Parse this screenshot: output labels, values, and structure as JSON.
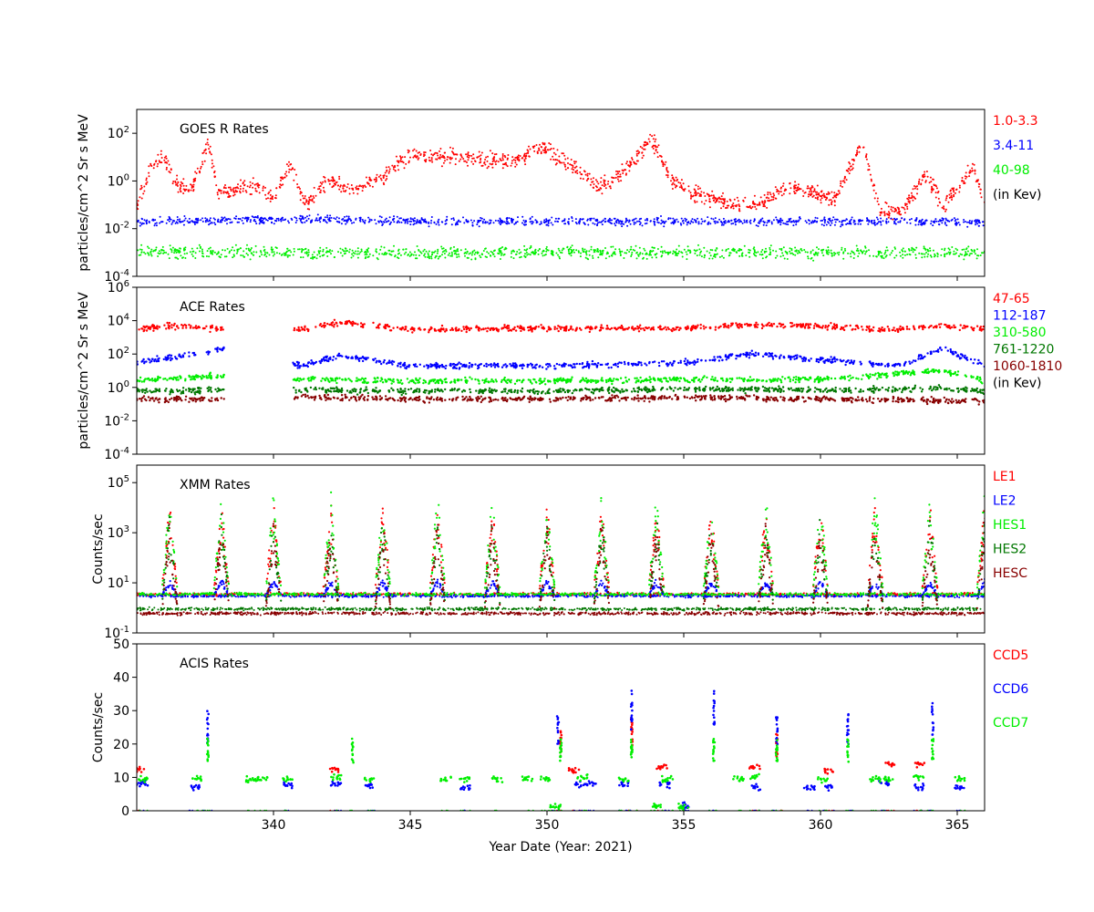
{
  "xlabel": "Year Date (Year: 2021)",
  "xlim": [
    335,
    366
  ],
  "xticks": [
    340,
    345,
    350,
    355,
    360,
    365
  ],
  "chart_data": [
    {
      "type": "scatter",
      "title": "GOES R Rates",
      "ylabel": "particles/cm^2 Sr s MeV",
      "yscale": "log",
      "ylim": [
        0.0001,
        1000
      ],
      "yticks": [
        {
          "exp": "-4",
          "value": 0.0001
        },
        {
          "exp": "-2",
          "value": 0.01
        },
        {
          "exp": "0",
          "value": 1
        },
        {
          "exp": "2",
          "value": 100
        }
      ],
      "legend": [
        {
          "label": "1.0-3.3",
          "color": "#ff0000"
        },
        {
          "label": "3.4-11",
          "color": "#0000ff"
        },
        {
          "label": "40-98",
          "color": "#00ee00"
        },
        {
          "label": "(in Kev)",
          "color": "#000000"
        }
      ],
      "series": [
        {
          "name": "1.0-3.3",
          "color": "#ff0000",
          "values": [
            [
              335.0,
              0.1
            ],
            [
              335.5,
              3
            ],
            [
              336.0,
              10
            ],
            [
              336.5,
              0.6
            ],
            [
              337.0,
              0.4
            ],
            [
              337.6,
              40
            ],
            [
              338.0,
              0.3
            ],
            [
              338.7,
              0.6
            ],
            [
              339.5,
              0.5
            ],
            [
              340.0,
              0.2
            ],
            [
              340.6,
              5
            ],
            [
              341.2,
              0.1
            ],
            [
              342.0,
              1
            ],
            [
              343.0,
              0.4
            ],
            [
              344.0,
              1.5
            ],
            [
              344.9,
              10
            ],
            [
              345.8,
              10
            ],
            [
              346.8,
              10
            ],
            [
              347.8,
              8
            ],
            [
              348.8,
              6
            ],
            [
              349.8,
              30
            ],
            [
              350.8,
              5
            ],
            [
              351.9,
              0.5
            ],
            [
              352.9,
              3
            ],
            [
              353.8,
              60
            ],
            [
              354.6,
              1
            ],
            [
              355.4,
              0.3
            ],
            [
              356.8,
              0.1
            ],
            [
              357.8,
              0.1
            ],
            [
              358.6,
              0.5
            ],
            [
              359.5,
              0.4
            ],
            [
              360.5,
              0.15
            ],
            [
              361.5,
              40
            ],
            [
              362.2,
              0.05
            ],
            [
              363.0,
              0.05
            ],
            [
              363.8,
              2
            ],
            [
              364.5,
              0.1
            ],
            [
              365.6,
              4
            ],
            [
              366.0,
              0.1
            ]
          ]
        },
        {
          "name": "3.4-11",
          "color": "#0000ff",
          "values": [
            [
              335.0,
              0.02
            ],
            [
              338.0,
              0.022
            ],
            [
              341.0,
              0.025
            ],
            [
              345.0,
              0.02
            ],
            [
              350.0,
              0.02
            ],
            [
              355.0,
              0.02
            ],
            [
              360.0,
              0.02
            ],
            [
              366.0,
              0.02
            ]
          ]
        },
        {
          "name": "40-98",
          "color": "#00ee00",
          "values": [
            [
              335.0,
              0.001
            ],
            [
              340.0,
              0.001
            ],
            [
              345.0,
              0.001
            ],
            [
              350.0,
              0.001
            ],
            [
              355.0,
              0.001
            ],
            [
              360.0,
              0.001
            ],
            [
              366.0,
              0.001
            ]
          ]
        }
      ]
    },
    {
      "type": "scatter",
      "title": "ACE Rates",
      "ylabel": "particles/cm^2 Sr s MeV",
      "yscale": "log",
      "ylim": [
        0.0001,
        1000000
      ],
      "yticks": [
        {
          "exp": "-4",
          "value": 0.0001
        },
        {
          "exp": "-2",
          "value": 0.01
        },
        {
          "exp": "0",
          "value": 1
        },
        {
          "exp": "2",
          "value": 100
        },
        {
          "exp": "4",
          "value": 10000
        },
        {
          "exp": "6",
          "value": 1000000
        }
      ],
      "legend": [
        {
          "label": "47-65",
          "color": "#ff0000"
        },
        {
          "label": "112-187",
          "color": "#0000ff"
        },
        {
          "label": "310-580",
          "color": "#00ee00"
        },
        {
          "label": "761-1220",
          "color": "#007700"
        },
        {
          "label": "1060-1810",
          "color": "#880000"
        },
        {
          "label": "(in Kev)",
          "color": "#000000"
        }
      ],
      "gaps": [
        [
          338.2,
          340.7
        ]
      ],
      "series": [
        {
          "name": "47-65",
          "color": "#ff0000",
          "values": [
            [
              335.0,
              3000
            ],
            [
              336.2,
              5000
            ],
            [
              338.1,
              3000
            ],
            [
              341.0,
              3000
            ],
            [
              342.4,
              8000
            ],
            [
              345.0,
              3000
            ],
            [
              350.0,
              3500
            ],
            [
              355.0,
              3500
            ],
            [
              358.3,
              6000
            ],
            [
              362.8,
              3000
            ],
            [
              364.5,
              5000
            ],
            [
              366.0,
              3000
            ]
          ]
        },
        {
          "name": "112-187",
          "color": "#0000ff",
          "values": [
            [
              335.0,
              30
            ],
            [
              336.2,
              60
            ],
            [
              338.1,
              200
            ],
            [
              341.0,
              20
            ],
            [
              342.4,
              80
            ],
            [
              345.0,
              20
            ],
            [
              350.0,
              20
            ],
            [
              355.0,
              30
            ],
            [
              357.5,
              100
            ],
            [
              362.8,
              20
            ],
            [
              364.5,
              200
            ],
            [
              366.0,
              20
            ]
          ]
        },
        {
          "name": "310-580",
          "color": "#00ee00",
          "values": [
            [
              335.0,
              2.5
            ],
            [
              338.1,
              5
            ],
            [
              341.0,
              3
            ],
            [
              345.0,
              2.5
            ],
            [
              350.0,
              2.5
            ],
            [
              355.0,
              3
            ],
            [
              360.0,
              3
            ],
            [
              364.5,
              10
            ],
            [
              366.0,
              2.5
            ]
          ]
        },
        {
          "name": "761-1220",
          "color": "#007700",
          "values": [
            [
              335.0,
              0.6
            ],
            [
              338.1,
              0.7
            ],
            [
              341.0,
              0.7
            ],
            [
              345.0,
              0.6
            ],
            [
              350.0,
              0.6
            ],
            [
              355.0,
              0.8
            ],
            [
              360.0,
              0.7
            ],
            [
              364.5,
              0.9
            ],
            [
              366.0,
              0.6
            ]
          ]
        },
        {
          "name": "1060-1810",
          "color": "#880000",
          "values": [
            [
              335.0,
              0.2
            ],
            [
              338.1,
              0.2
            ],
            [
              341.0,
              0.25
            ],
            [
              345.0,
              0.2
            ],
            [
              350.0,
              0.2
            ],
            [
              355.0,
              0.25
            ],
            [
              360.0,
              0.2
            ],
            [
              366.0,
              0.15
            ]
          ]
        }
      ]
    },
    {
      "type": "scatter",
      "title": "XMM Rates",
      "ylabel": "Counts/sec",
      "yscale": "log",
      "ylim": [
        0.1,
        500000
      ],
      "yticks": [
        {
          "base": "10",
          "exp": "-1",
          "value": 0.1
        },
        {
          "base": "10",
          "exp": "1",
          "value": 10
        },
        {
          "base": "10",
          "exp": "3",
          "value": 1000
        },
        {
          "base": "10",
          "exp": "5",
          "value": 100000
        }
      ],
      "legend": [
        {
          "label": "LE1",
          "color": "#ff0000"
        },
        {
          "label": "LE2",
          "color": "#0000ff"
        },
        {
          "label": "HES1",
          "color": "#00ee00"
        },
        {
          "label": "HES2",
          "color": "#007700"
        },
        {
          "label": "HESC",
          "color": "#880000"
        }
      ],
      "orbits": [
        336.2,
        338.1,
        340.0,
        342.1,
        344.0,
        346.0,
        348.0,
        350.0,
        352.0,
        354.0,
        356.0,
        358.0,
        360.0,
        362.0,
        364.0,
        366.0
      ],
      "series": [
        {
          "name": "LE1",
          "color": "#ff0000",
          "baseline": 3.5,
          "peak": 20000
        },
        {
          "name": "LE2",
          "color": "#0000ff",
          "baseline": 3.0,
          "peak": 15
        },
        {
          "name": "HES1",
          "color": "#00ee00",
          "baseline": 3.5,
          "peak": 50000
        },
        {
          "name": "HES2",
          "color": "#007700",
          "baseline": 0.9,
          "peak": 8000
        },
        {
          "name": "HESC",
          "color": "#880000",
          "baseline": 0.6,
          "peak": 5000
        }
      ]
    },
    {
      "type": "scatter",
      "title": "ACIS Rates",
      "ylabel": "Counts/sec",
      "yscale": "linear",
      "ylim": [
        0,
        50
      ],
      "yticks": [
        0,
        10,
        20,
        30,
        40,
        50
      ],
      "legend": [
        {
          "label": "CCD5",
          "color": "#ff0000"
        },
        {
          "label": "CCD6",
          "color": "#0000ff"
        },
        {
          "label": "CCD7",
          "color": "#00ee00"
        }
      ],
      "series": [
        {
          "name": "CCD5",
          "color": "#ff0000",
          "values": [
            [
              335.1,
              12.5
            ],
            [
              342.2,
              12.5
            ],
            [
              350.5,
              20
            ],
            [
              351.0,
              12
            ],
            [
              353.1,
              23
            ],
            [
              354.2,
              13
            ],
            [
              357.6,
              13
            ],
            [
              358.4,
              20
            ],
            [
              360.3,
              12
            ],
            [
              362.5,
              14
            ],
            [
              363.6,
              14
            ]
          ]
        },
        {
          "name": "CCD6",
          "color": "#0000ff",
          "values": [
            [
              335.2,
              8
            ],
            [
              337.1,
              7
            ],
            [
              337.6,
              25
            ],
            [
              340.5,
              7.5
            ],
            [
              342.3,
              8
            ],
            [
              343.5,
              7.5
            ],
            [
              347.0,
              7
            ],
            [
              350.4,
              25
            ],
            [
              351.2,
              8
            ],
            [
              351.6,
              8
            ],
            [
              352.8,
              8
            ],
            [
              353.1,
              30
            ],
            [
              354.3,
              8
            ],
            [
              355.0,
              1.5
            ],
            [
              356.1,
              30
            ],
            [
              357.6,
              7
            ],
            [
              358.4,
              25
            ],
            [
              359.6,
              7
            ],
            [
              360.3,
              7
            ],
            [
              361.0,
              25
            ],
            [
              362.3,
              8
            ],
            [
              363.6,
              7
            ],
            [
              364.1,
              28
            ],
            [
              365.1,
              7
            ]
          ]
        },
        {
          "name": "CCD7",
          "color": "#00ee00",
          "values": [
            [
              335.2,
              9.5
            ],
            [
              337.2,
              9.5
            ],
            [
              337.6,
              18
            ],
            [
              339.2,
              9.5
            ],
            [
              339.6,
              9.5
            ],
            [
              340.5,
              9.5
            ],
            [
              342.3,
              10
            ],
            [
              342.9,
              18
            ],
            [
              343.5,
              9.5
            ],
            [
              346.3,
              9.5
            ],
            [
              347.0,
              9.5
            ],
            [
              348.2,
              9.5
            ],
            [
              349.3,
              9.5
            ],
            [
              349.9,
              9.5
            ],
            [
              350.3,
              1.5
            ],
            [
              350.5,
              18
            ],
            [
              351.3,
              10
            ],
            [
              352.8,
              9.5
            ],
            [
              353.1,
              18
            ],
            [
              354.0,
              1.2
            ],
            [
              354.4,
              9.5
            ],
            [
              355.0,
              1.2
            ],
            [
              356.1,
              18
            ],
            [
              357.0,
              9.5
            ],
            [
              357.6,
              10
            ],
            [
              358.4,
              18
            ],
            [
              360.1,
              9
            ],
            [
              361.0,
              18
            ],
            [
              362.0,
              9.5
            ],
            [
              362.5,
              9.5
            ],
            [
              363.6,
              10
            ],
            [
              364.1,
              18
            ],
            [
              365.1,
              9.5
            ]
          ]
        }
      ]
    }
  ]
}
